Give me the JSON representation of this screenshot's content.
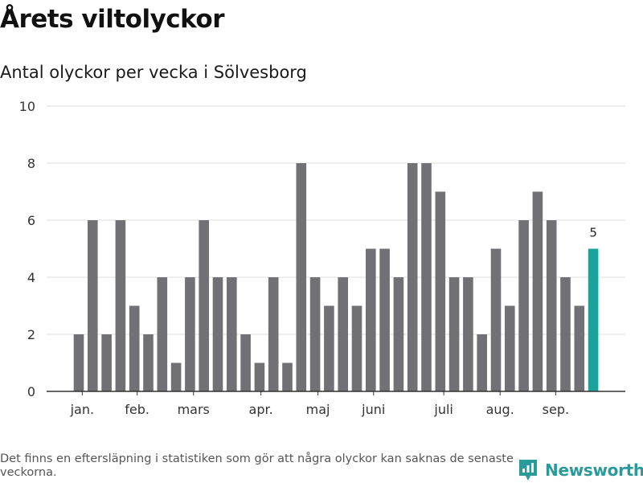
{
  "title": "Årets viltolyckor",
  "subtitle": "Antal olyckor per vecka i Sölvesborg",
  "footnote": "Det finns en eftersläpning i statistiken som gör att några olyckor kan saknas de senaste veckorna.",
  "brand": {
    "name": "Newsworthy",
    "icon": "newsworthy-logo-icon",
    "color": "#2a9a9b"
  },
  "colors": {
    "bar": "#717074",
    "highlight": "#1aa39b",
    "grid": "#dedede",
    "axis": "#333333"
  },
  "chart_data": {
    "type": "bar",
    "ylim": [
      0,
      10
    ],
    "yticks": [
      0,
      2,
      4,
      6,
      8,
      10
    ],
    "grid": true,
    "x": [
      1,
      2,
      3,
      4,
      5,
      6,
      7,
      8,
      9,
      10,
      11,
      12,
      13,
      14,
      15,
      16,
      17,
      18,
      19,
      20,
      21,
      22,
      23,
      24,
      25,
      26,
      27,
      28,
      29,
      30,
      31,
      32,
      33,
      34,
      35,
      36,
      37,
      38
    ],
    "values": [
      2,
      6,
      2,
      6,
      3,
      2,
      4,
      1,
      4,
      6,
      4,
      4,
      2,
      1,
      4,
      1,
      8,
      4,
      3,
      4,
      3,
      5,
      5,
      4,
      8,
      8,
      7,
      4,
      4,
      2,
      5,
      3,
      6,
      7,
      6,
      4,
      3,
      5
    ],
    "highlight_index": 37,
    "highlight_label": "5",
    "month_labels": [
      {
        "label": "jan.",
        "x": 1.25
      },
      {
        "label": "feb.",
        "x": 5.2
      },
      {
        "label": "mars",
        "x": 9.25
      },
      {
        "label": "apr.",
        "x": 14.1
      },
      {
        "label": "maj",
        "x": 18.2
      },
      {
        "label": "juni",
        "x": 22.2
      },
      {
        "label": "juli",
        "x": 27.25
      },
      {
        "label": "aug.",
        "x": 31.3
      },
      {
        "label": "sep.",
        "x": 35.3
      }
    ]
  }
}
